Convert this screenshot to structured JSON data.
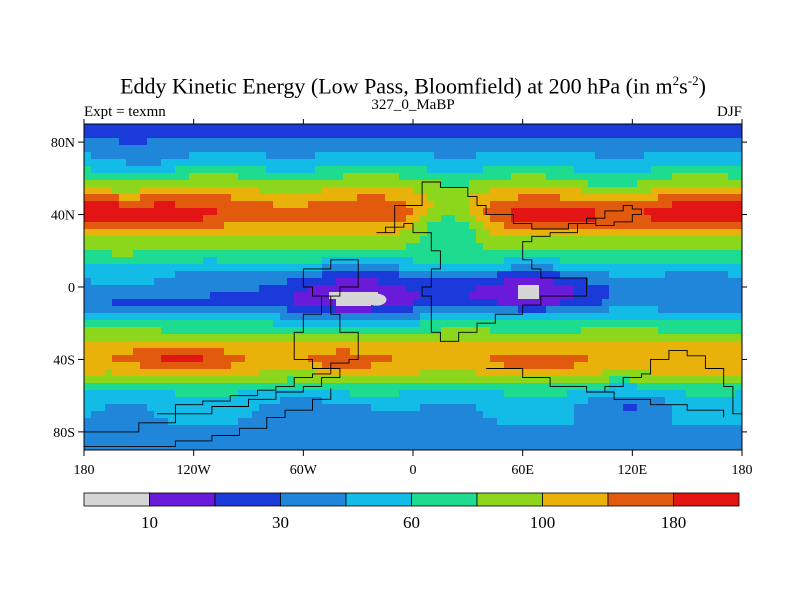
{
  "chart_data": {
    "type": "heatmap",
    "title_main": "Eddy Kinetic Energy (Low Pass, Bloomfield) at 200 hPa (in m",
    "title_sup1": "2",
    "title_mid": "s",
    "title_sup2": "-2",
    "title_end": ")",
    "left_string": "Expt = texmn",
    "center_string": "327_0_MaBP",
    "right_string": "DJF",
    "x_ticks": [
      "180",
      "120W",
      "60W",
      "0",
      "60E",
      "120E",
      "180"
    ],
    "x_tick_values": [
      -180,
      -120,
      -60,
      0,
      60,
      120,
      180
    ],
    "y_ticks": [
      "80N",
      "40N",
      "0",
      "40S",
      "80S"
    ],
    "y_tick_values": [
      80,
      40,
      0,
      -40,
      -80
    ],
    "xlim": [
      -180,
      180
    ],
    "ylim": [
      -90,
      90
    ],
    "colorbar_labels": [
      "10",
      "30",
      "60",
      "100",
      "180"
    ],
    "colorbar_label_bin_index": [
      1,
      3,
      5,
      7,
      9
    ],
    "colors": [
      "#d6d6d6",
      "#6a1bd9",
      "#1a3bd9",
      "#1f86da",
      "#12bce6",
      "#1ddb8f",
      "#8cd61c",
      "#e8b20a",
      "#e25a0e",
      "#e21414"
    ],
    "band_levels": [
      {
        "lat": 90,
        "v": 2
      },
      {
        "lat": 82,
        "v": 3
      },
      {
        "lat": 74,
        "v": 4
      },
      {
        "lat": 66,
        "v": 5
      },
      {
        "lat": 60,
        "v": 6
      },
      {
        "lat": 54,
        "v": 7
      },
      {
        "lat": 48,
        "v": 8
      },
      {
        "lat": 40,
        "v": 8.6
      },
      {
        "lat": 32,
        "v": 7.5
      },
      {
        "lat": 24,
        "v": 6.5
      },
      {
        "lat": 16,
        "v": 5.5
      },
      {
        "lat": 8,
        "v": 4.2
      },
      {
        "lat": 0,
        "v": 3.8
      },
      {
        "lat": -8,
        "v": 3.5
      },
      {
        "lat": -16,
        "v": 4.5
      },
      {
        "lat": -24,
        "v": 6
      },
      {
        "lat": -32,
        "v": 7.2
      },
      {
        "lat": -40,
        "v": 7.8
      },
      {
        "lat": -48,
        "v": 7
      },
      {
        "lat": -56,
        "v": 5.2
      },
      {
        "lat": -64,
        "v": 4.3
      },
      {
        "lat": -74,
        "v": 4
      },
      {
        "lat": -82,
        "v": 3.6
      },
      {
        "lat": -90,
        "v": 3.2
      }
    ],
    "blobs": [
      {
        "lon": -150,
        "lat": 40,
        "rlon": 38,
        "rlat": 9,
        "amp": 1.4
      },
      {
        "lon": 160,
        "lat": 40,
        "rlon": 30,
        "rlat": 9,
        "amp": 1.4
      },
      {
        "lon": 80,
        "lat": 38,
        "rlon": 40,
        "rlat": 7,
        "amp": 1.0
      },
      {
        "lon": 20,
        "lat": 35,
        "rlon": 18,
        "rlat": 14,
        "amp": -2.5
      },
      {
        "lon": -40,
        "lat": -5,
        "rlon": 45,
        "rlat": 14,
        "amp": -2.6
      },
      {
        "lon": 60,
        "lat": -2,
        "rlon": 50,
        "rlat": 10,
        "amp": -2.5
      },
      {
        "lon": -150,
        "lat": -10,
        "rlon": 25,
        "rlat": 8,
        "amp": -1.2
      },
      {
        "lon": -130,
        "lat": -40,
        "rlon": 30,
        "rlat": 8,
        "amp": 1.4
      },
      {
        "lon": -40,
        "lat": -40,
        "rlon": 18,
        "rlat": 5,
        "amp": 1.2
      },
      {
        "lon": 70,
        "lat": -42,
        "rlon": 30,
        "rlat": 7,
        "amp": 0.8
      },
      {
        "lon": 120,
        "lat": -65,
        "rlon": 25,
        "rlat": 8,
        "amp": -1.0
      },
      {
        "lon": -40,
        "lat": -70,
        "rlon": 35,
        "rlat": 8,
        "amp": -0.8
      },
      {
        "lon": -140,
        "lat": 70,
        "rlon": 25,
        "rlat": 8,
        "amp": -0.6
      },
      {
        "lon": 100,
        "lat": 60,
        "rlon": 25,
        "rlat": 6,
        "amp": -0.5
      }
    ]
  }
}
